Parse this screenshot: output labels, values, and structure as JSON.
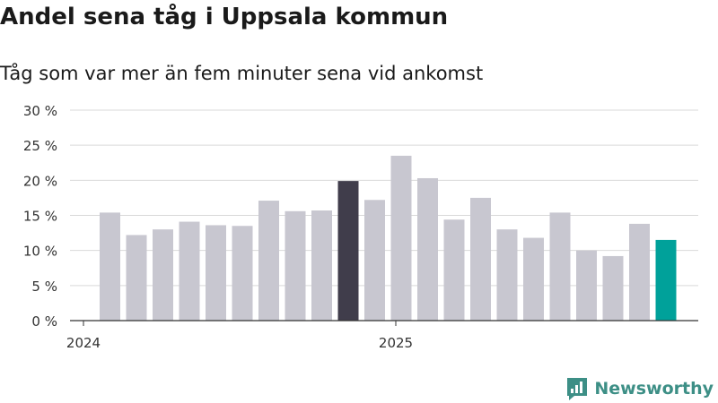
{
  "chart_data": {
    "type": "bar",
    "title": "Andel sena tåg i Uppsala kommun",
    "subtitle": "Tåg som var mer än fem minuter sena vid ankomst",
    "x_ticks": [
      "2024",
      "2025"
    ],
    "y_ticks": [
      "0 %",
      "5 %",
      "10 %",
      "15 %",
      "20 %",
      "25 %",
      "30 %"
    ],
    "ylim": [
      0,
      30
    ],
    "grid": true,
    "values": [
      15.4,
      12.2,
      13.0,
      14.1,
      13.6,
      13.5,
      17.1,
      15.6,
      15.7,
      19.9,
      17.2,
      23.5,
      20.3,
      14.4,
      17.5,
      13.0,
      11.8,
      15.4,
      10.0,
      9.2,
      13.8,
      11.5
    ],
    "highlight": {
      "index": 9,
      "color": "#403d4b"
    },
    "latest": {
      "index": 21,
      "color": "#00a19a"
    },
    "bar_color": "#c8c7d0"
  },
  "brand": {
    "name": "Newsworthy",
    "icon": "newsworthy-logo-icon",
    "color": "#3d8f86"
  }
}
